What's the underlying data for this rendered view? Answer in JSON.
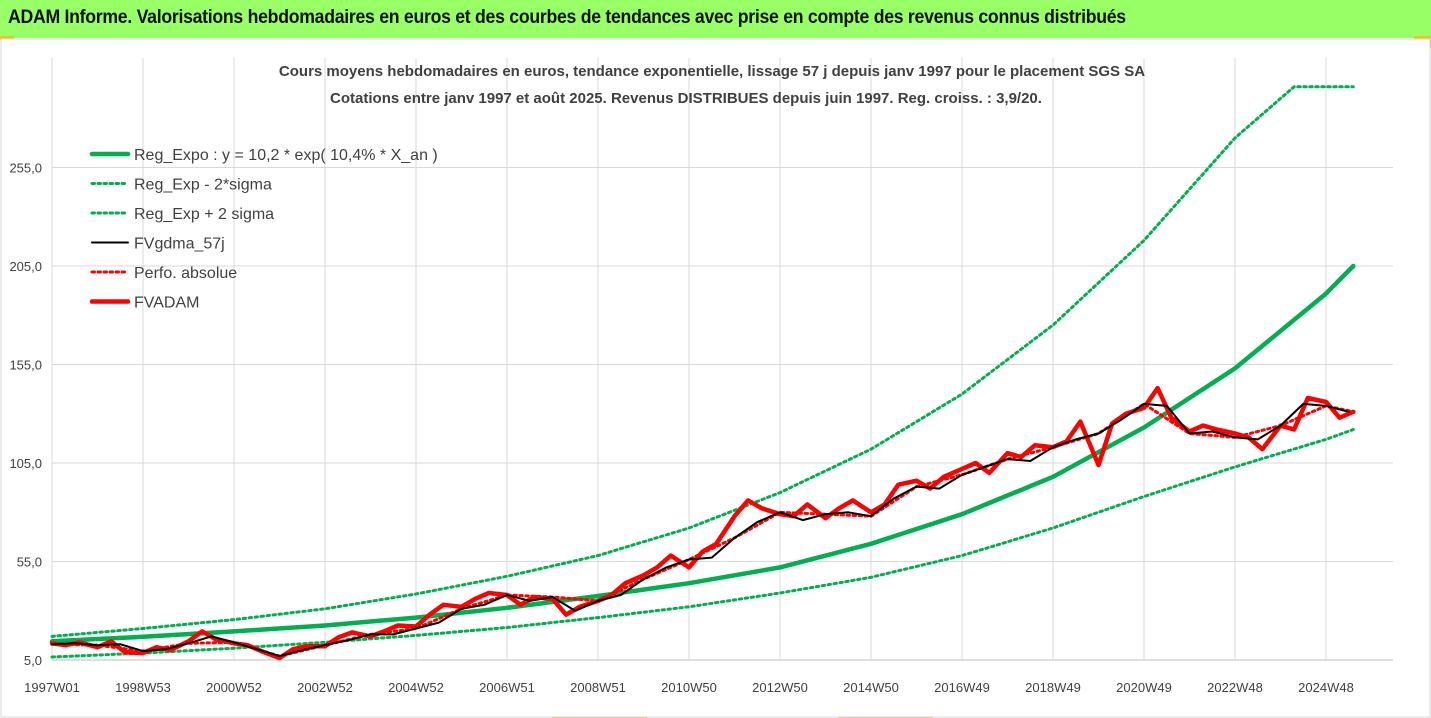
{
  "header": {
    "title": "ADAM Informe. Valorisations hebdomadaires en euros et des courbes de tendances avec prise en compte des revenus connus distribués"
  },
  "colors": {
    "header_bg": "#99ff66",
    "reg_expo": "#00b050",
    "fvgdma": "#000000",
    "fvadam": "#ff0000",
    "grid": "#d9d9d9"
  },
  "chart_data": {
    "type": "line",
    "title": "Cours moyens hebdomadaires en euros, tendance exponentielle, lissage 57 j depuis janv 1997 pour le placement SGS SA",
    "subtitle": "Cotations entre janv 1997 et août 2025. Revenus DISTRIBUES depuis juin 1997. Reg. croiss. : 3,9/20.",
    "xlabel": "",
    "ylabel": "",
    "ylim": [
      5,
      300
    ],
    "yticks": [
      "5,0",
      "55,0",
      "105,0",
      "155,0",
      "205,0",
      "255,0"
    ],
    "yticks_values": [
      5,
      55,
      105,
      155,
      205,
      255
    ],
    "xticks": [
      "1997W01",
      "1998W53",
      "2000W52",
      "2002W52",
      "2004W52",
      "2006W51",
      "2008W51",
      "2010W50",
      "2012W50",
      "2014W50",
      "2016W49",
      "2018W49",
      "2020W49",
      "2022W48",
      "2024W48"
    ],
    "xticks_years": [
      1997.0,
      1999.0,
      2001.0,
      2003.0,
      2005.0,
      2007.0,
      2009.0,
      2011.0,
      2013.0,
      2015.0,
      2017.0,
      2019.0,
      2021.0,
      2023.0,
      2025.0
    ],
    "xlim": [
      1997.0,
      2025.65
    ],
    "grid": true,
    "legend_position": "top-left",
    "series": [
      {
        "name": "Reg_Expo : y = 10,2 * exp( 10,4% *  X_an )",
        "style": "solid-thick",
        "color": "#00b050",
        "x": [
          1997.0,
          1999.0,
          2001.0,
          2003.0,
          2005.0,
          2007.0,
          2009.0,
          2011.0,
          2013.0,
          2015.0,
          2017.0,
          2019.0,
          2021.0,
          2023.0,
          2025.0,
          2025.6
        ],
        "values": [
          14.5,
          16.8,
          19.5,
          22.5,
          26.5,
          31.5,
          37.5,
          44.0,
          52.0,
          64.0,
          79.0,
          98.0,
          123.0,
          153.0,
          191.0,
          205.0
        ]
      },
      {
        "name": "Reg_Exp - 2*sigma",
        "style": "dotted",
        "color": "#00b050",
        "x": [
          1997.0,
          1999.0,
          2001.0,
          2003.0,
          2005.0,
          2007.0,
          2009.0,
          2011.0,
          2013.0,
          2015.0,
          2017.0,
          2019.0,
          2021.0,
          2023.0,
          2025.0,
          2025.6
        ],
        "values": [
          6.5,
          8.5,
          11.0,
          14.0,
          17.5,
          21.5,
          26.5,
          32.0,
          39.0,
          47.0,
          58.0,
          72.0,
          88.0,
          103.0,
          117.0,
          122.0
        ]
      },
      {
        "name": "Reg_Exp + 2 sigma",
        "style": "dotted",
        "color": "#00b050",
        "x": [
          1997.0,
          1999.0,
          2001.0,
          2003.0,
          2005.0,
          2007.0,
          2009.0,
          2011.0,
          2013.0,
          2015.0,
          2017.0,
          2019.0,
          2021.0,
          2023.0,
          2024.3,
          2025.6
        ],
        "values": [
          17.0,
          21.0,
          25.5,
          31.0,
          38.5,
          47.5,
          58.0,
          72.0,
          90.0,
          112.0,
          140.0,
          175.0,
          218.0,
          270.0,
          296.0,
          296.0
        ]
      },
      {
        "name": "FVgdma_57j",
        "style": "solid",
        "color": "#000000",
        "x": [
          1997.0,
          1997.5,
          1998.0,
          1998.5,
          1999.0,
          1999.5,
          2000.0,
          2000.5,
          2001.0,
          2001.5,
          2002.0,
          2002.5,
          2003.0,
          2003.5,
          2004.0,
          2004.5,
          2005.0,
          2005.5,
          2006.0,
          2006.5,
          2007.0,
          2007.5,
          2008.0,
          2008.5,
          2009.0,
          2009.5,
          2010.0,
          2010.5,
          2011.0,
          2011.5,
          2012.0,
          2012.5,
          2013.0,
          2013.5,
          2014.0,
          2014.5,
          2015.0,
          2015.5,
          2016.0,
          2016.5,
          2017.0,
          2017.5,
          2018.0,
          2018.5,
          2019.0,
          2019.5,
          2020.0,
          2020.5,
          2021.0,
          2021.5,
          2022.0,
          2022.5,
          2023.0,
          2023.5,
          2024.0,
          2024.5,
          2025.0,
          2025.5
        ],
        "values": [
          13.0,
          13.5,
          12.5,
          13.0,
          9.5,
          10.5,
          13.5,
          17.0,
          14.0,
          10.5,
          7.0,
          10.0,
          12.5,
          15.0,
          18.0,
          18.0,
          21.0,
          24.0,
          31.0,
          33.0,
          38.0,
          35.0,
          37.0,
          30.0,
          35.0,
          38.0,
          46.0,
          52.0,
          56.0,
          57.0,
          67.0,
          75.0,
          80.0,
          76.0,
          79.0,
          80.0,
          78.0,
          87.0,
          93.0,
          92.0,
          99.0,
          103.0,
          107.0,
          106.0,
          113.0,
          117.0,
          120.0,
          127.0,
          135.0,
          134.0,
          120.0,
          121.0,
          118.0,
          117.0,
          124.0,
          135.0,
          134.0,
          131.0
        ]
      },
      {
        "name": "Perfo. absolue",
        "style": "dotted",
        "color": "#ff0000",
        "x": [
          1997.0,
          1998.0,
          1999.0,
          2000.0,
          2001.0,
          2002.0,
          2003.0,
          2004.0,
          2005.0,
          2006.0,
          2007.0,
          2008.0,
          2009.0,
          2010.0,
          2011.0,
          2012.0,
          2013.0,
          2014.0,
          2015.0,
          2016.0,
          2017.0,
          2018.0,
          2019.0,
          2020.0,
          2021.0,
          2022.0,
          2023.0,
          2024.0,
          2025.0,
          2025.6
        ],
        "values": [
          13.0,
          12.5,
          9.5,
          13.5,
          14.0,
          7.0,
          12.5,
          18.0,
          21.0,
          31.0,
          38.0,
          37.0,
          35.0,
          46.0,
          56.0,
          67.0,
          80.0,
          79.0,
          78.0,
          93.0,
          99.0,
          107.0,
          113.0,
          120.0,
          135.0,
          120.0,
          118.0,
          124.0,
          134.0,
          131.0
        ]
      },
      {
        "name": "FVADAM",
        "style": "solid-thick",
        "color": "#ff0000",
        "x": [
          1997.0,
          1997.3,
          1997.6,
          1998.0,
          1998.3,
          1998.6,
          1999.0,
          1999.3,
          1999.6,
          2000.0,
          2000.3,
          2000.6,
          2001.0,
          2001.3,
          2001.6,
          2002.0,
          2002.3,
          2002.6,
          2003.0,
          2003.3,
          2003.6,
          2004.0,
          2004.3,
          2004.6,
          2005.0,
          2005.3,
          2005.6,
          2006.0,
          2006.3,
          2006.6,
          2007.0,
          2007.3,
          2007.6,
          2008.0,
          2008.3,
          2008.6,
          2009.0,
          2009.3,
          2009.6,
          2010.0,
          2010.3,
          2010.6,
          2011.0,
          2011.3,
          2011.6,
          2012.0,
          2012.3,
          2012.6,
          2013.0,
          2013.3,
          2013.6,
          2014.0,
          2014.3,
          2014.6,
          2015.0,
          2015.3,
          2015.6,
          2016.0,
          2016.3,
          2016.6,
          2017.0,
          2017.3,
          2017.6,
          2018.0,
          2018.3,
          2018.6,
          2019.0,
          2019.3,
          2019.6,
          2020.0,
          2020.3,
          2020.6,
          2021.0,
          2021.3,
          2021.6,
          2022.0,
          2022.3,
          2022.6,
          2023.0,
          2023.3,
          2023.6,
          2024.0,
          2024.3,
          2024.6,
          2025.0,
          2025.3,
          2025.6
        ],
        "values": [
          13.5,
          12.5,
          14.0,
          11.5,
          14.5,
          9.0,
          8.5,
          11.5,
          10.0,
          14.5,
          19.5,
          15.5,
          13.5,
          12.5,
          9.5,
          6.0,
          10.5,
          12.0,
          12.0,
          16.5,
          19.0,
          17.0,
          19.5,
          22.5,
          22.0,
          28.0,
          33.0,
          32.0,
          36.0,
          39.0,
          38.0,
          33.0,
          37.0,
          36.0,
          28.0,
          32.0,
          35.0,
          38.0,
          44.0,
          48.0,
          52.0,
          58.0,
          52.0,
          60.0,
          64.0,
          78.0,
          86.0,
          82.0,
          79.0,
          78.0,
          84.0,
          77.0,
          82.0,
          86.0,
          80.0,
          84.0,
          94.0,
          96.0,
          92.0,
          98.0,
          102.0,
          105.0,
          100.0,
          110.0,
          108.0,
          114.0,
          113.0,
          116.0,
          126.0,
          104.0,
          125.0,
          130.0,
          133.0,
          143.0,
          128.0,
          121.0,
          124.0,
          122.0,
          120.0,
          118.0,
          112.0,
          124.0,
          122.0,
          138.0,
          136.0,
          128.0,
          131.0
        ]
      }
    ]
  }
}
